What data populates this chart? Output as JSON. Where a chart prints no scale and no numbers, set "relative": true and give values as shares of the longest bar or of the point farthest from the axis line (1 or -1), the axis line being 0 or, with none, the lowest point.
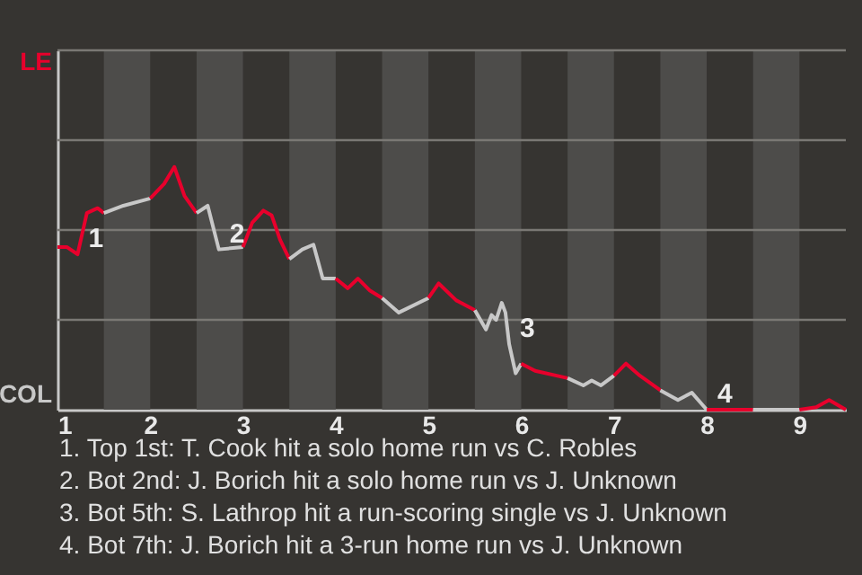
{
  "chart_data": {
    "type": "line",
    "relative": true,
    "xlim": [
      1,
      9.5
    ],
    "xticks": [
      1,
      2,
      3,
      4,
      5,
      6,
      7,
      8,
      9
    ],
    "marker": "none",
    "line_style": "solid",
    "ref_lines": [
      {
        "axis": "y",
        "value": 0.37,
        "color": "#7a7874"
      },
      {
        "axis": "y",
        "value": 0.74,
        "color": "#7a7874"
      },
      {
        "axis": "y",
        "value": 1.11,
        "color": "#7a7874"
      },
      {
        "axis": "y",
        "value": 1.48,
        "color": "#7a7874"
      }
    ],
    "bands": [
      {
        "axis": "x",
        "from": 1.5,
        "to": 2,
        "color": "#4d4c4a"
      },
      {
        "axis": "x",
        "from": 2.5,
        "to": 3,
        "color": "#4d4c4a"
      },
      {
        "axis": "x",
        "from": 3.5,
        "to": 4,
        "color": "#4d4c4a"
      },
      {
        "axis": "x",
        "from": 4.5,
        "to": 5,
        "color": "#4d4c4a"
      },
      {
        "axis": "x",
        "from": 5.5,
        "to": 6,
        "color": "#4d4c4a"
      },
      {
        "axis": "x",
        "from": 6.5,
        "to": 7,
        "color": "#4d4c4a"
      },
      {
        "axis": "x",
        "from": 7.5,
        "to": 8,
        "color": "#4d4c4a"
      },
      {
        "axis": "x",
        "from": 8.5,
        "to": 9,
        "color": "#4d4c4a"
      }
    ],
    "series": [
      {
        "color": "#e8002c",
        "x": [
          1,
          1.1,
          1.217,
          1.317,
          1.433,
          1.5
        ],
        "values": [
          0.67,
          0.67,
          0.64,
          0.81,
          0.83,
          0.81
        ]
      },
      {
        "color": "#c8c8c8",
        "x": [
          1.5,
          1.71,
          2
        ],
        "values": [
          0.81,
          0.84,
          0.87
        ]
      },
      {
        "color": "#e8002c",
        "x": [
          2,
          2.15,
          2.26,
          2.37,
          2.5
        ],
        "values": [
          0.87,
          0.93,
          1,
          0.88,
          0.81
        ]
      },
      {
        "color": "#c8c8c8",
        "x": [
          2.5,
          2.62,
          2.74,
          3
        ],
        "values": [
          0.81,
          0.84,
          0.66,
          0.67
        ]
      },
      {
        "color": "#e8002c",
        "x": [
          3,
          3.1,
          3.22,
          3.31,
          3.4,
          3.5
        ],
        "values": [
          0.67,
          0.77,
          0.82,
          0.8,
          0.7,
          0.62
        ]
      },
      {
        "color": "#c8c8c8",
        "x": [
          3.5,
          3.64,
          3.76,
          3.86,
          4
        ],
        "values": [
          0.62,
          0.66,
          0.68,
          0.54,
          0.54
        ]
      },
      {
        "color": "#e8002c",
        "x": [
          4,
          4.13,
          4.24,
          4.37,
          4.5
        ],
        "values": [
          0.54,
          0.5,
          0.54,
          0.49,
          0.46
        ]
      },
      {
        "color": "#c8c8c8",
        "x": [
          4.5,
          4.68,
          5
        ],
        "values": [
          0.46,
          0.4,
          0.46
        ]
      },
      {
        "color": "#e8002c",
        "x": [
          5,
          5.11,
          5.3,
          5.45,
          5.5
        ],
        "values": [
          0.46,
          0.52,
          0.45,
          0.42,
          0.41
        ]
      },
      {
        "color": "#c8c8c8",
        "x": [
          5.5,
          5.62,
          5.68,
          5.73,
          5.79,
          5.83,
          5.87,
          5.94,
          6
        ],
        "values": [
          0.41,
          0.33,
          0.39,
          0.37,
          0.44,
          0.4,
          0.27,
          0.15,
          0.19
        ]
      },
      {
        "color": "#e8002c",
        "x": [
          6,
          6.15,
          6.5
        ],
        "values": [
          0.19,
          0.16,
          0.13
        ]
      },
      {
        "color": "#c8c8c8",
        "x": [
          6.5,
          6.67,
          6.76,
          6.86,
          7
        ],
        "values": [
          0.13,
          0.1,
          0.12,
          0.1,
          0.14
        ]
      },
      {
        "color": "#e8002c",
        "x": [
          7,
          7.13,
          7.28,
          7.5
        ],
        "values": [
          0.14,
          0.19,
          0.14,
          0.08
        ]
      },
      {
        "color": "#c8c8c8",
        "x": [
          7.5,
          7.69,
          7.84,
          8
        ],
        "values": [
          0.08,
          0.04,
          0.07,
          0
        ]
      },
      {
        "color": "#e8002c",
        "x": [
          8,
          8.15,
          8.5
        ],
        "values": [
          0,
          0,
          0
        ]
      },
      {
        "color": "#c8c8c8",
        "x": [
          8.5,
          9
        ],
        "values": [
          0,
          0
        ]
      },
      {
        "color": "#e8002c",
        "x": [
          9,
          9.18,
          9.32,
          9.5
        ],
        "values": [
          0,
          0.01,
          0.04,
          0
        ]
      }
    ],
    "annotations": [
      "LE",
      "COL",
      {
        "text": "1",
        "x": 1.217,
        "y": 0.64
      },
      {
        "text": "2",
        "x": 2.74,
        "y": 0.66
      },
      {
        "text": "3",
        "x": 5.87,
        "y": 0.27
      },
      {
        "text": "4",
        "x": 8,
        "y": 0
      },
      "1. Top 1st: T. Cook hit a solo home run vs C. Robles",
      "2. Bot 2nd: J. Borich hit a solo home run vs J. Unknown",
      "3. Bot 5th: S. Lathrop hit a run-scoring single vs J. Unknown",
      "4. Bot 7th: J. Borich hit a 3-run home run vs J. Unknown"
    ]
  }
}
